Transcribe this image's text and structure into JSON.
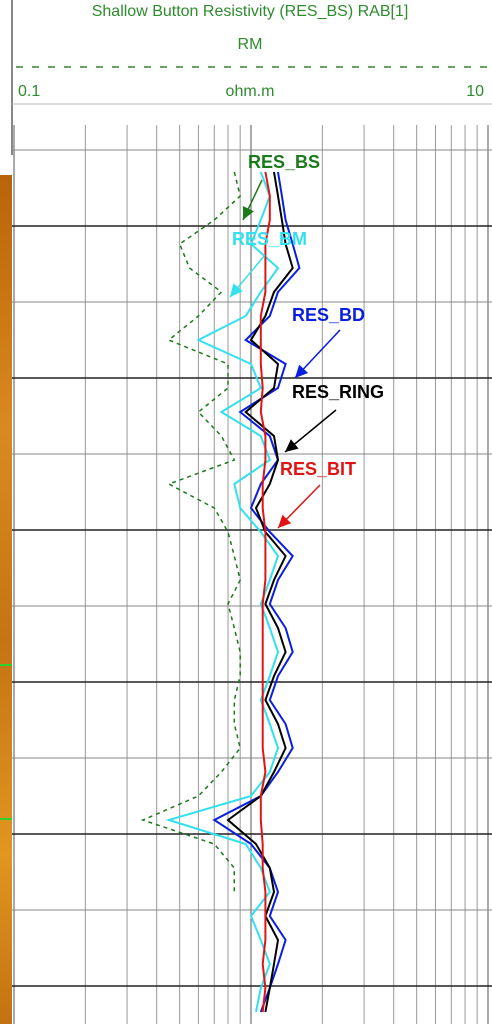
{
  "chart_data": {
    "type": "line",
    "title": "Shallow Button Resistivity (RES_BS) RAB[1]",
    "subtitle": "RM",
    "x_label": "ohm.m",
    "xlim": [
      0.1,
      10
    ],
    "xticks": [
      0.1,
      10
    ],
    "log_x": true,
    "grid": true,
    "title_color": "#2e8b2e",
    "series": [
      {
        "name": "RES_BS",
        "color": "#1a7a1a",
        "dashed": true,
        "values": [
          0.85,
          0.9,
          0.7,
          0.5,
          0.55,
          0.75,
          0.6,
          0.45,
          0.8,
          0.8,
          0.6,
          0.75,
          0.85,
          0.45,
          0.7,
          0.8,
          0.85,
          0.9,
          0.8,
          0.85,
          0.9,
          0.9,
          0.85,
          0.85,
          0.9,
          0.75,
          0.6,
          0.35,
          0.7,
          0.85,
          0.85,
          null,
          null,
          null,
          null,
          null
        ]
      },
      {
        "name": "RES_BM",
        "color": "#33e0ee",
        "dashed": false,
        "values": [
          1.1,
          1.2,
          1.1,
          1.0,
          1.3,
          1.1,
          0.95,
          0.6,
          1.0,
          1.1,
          0.75,
          1.1,
          1.2,
          0.85,
          0.9,
          1.1,
          1.3,
          1.2,
          1.1,
          1.2,
          1.3,
          1.2,
          1.1,
          1.2,
          1.3,
          1.2,
          1.0,
          0.45,
          0.95,
          1.1,
          1.2,
          1.0,
          1.1,
          1.2,
          1.1,
          1.05
        ]
      },
      {
        "name": "RES_BD",
        "color": "#0a1ee0",
        "dashed": false,
        "values": [
          1.3,
          1.35,
          1.4,
          1.5,
          1.6,
          1.3,
          1.2,
          0.95,
          1.4,
          1.3,
          0.9,
          1.2,
          1.3,
          1.1,
          1.0,
          1.2,
          1.5,
          1.3,
          1.2,
          1.4,
          1.5,
          1.3,
          1.2,
          1.4,
          1.5,
          1.3,
          1.1,
          0.7,
          1.0,
          1.2,
          1.3,
          1.2,
          1.4,
          1.3,
          1.2,
          1.1
        ]
      },
      {
        "name": "RES_RING",
        "color": "#000000",
        "dashed": false,
        "values": [
          1.25,
          1.3,
          1.35,
          1.4,
          1.5,
          1.25,
          1.15,
          1.0,
          1.3,
          1.25,
          0.95,
          1.25,
          1.3,
          1.2,
          1.05,
          1.15,
          1.4,
          1.25,
          1.15,
          1.3,
          1.4,
          1.25,
          1.15,
          1.3,
          1.4,
          1.25,
          1.1,
          0.8,
          1.05,
          1.2,
          1.25,
          1.15,
          1.3,
          1.25,
          1.2,
          1.15
        ]
      },
      {
        "name": "RES_BIT",
        "color": "#e01414",
        "dashed": false,
        "values": [
          1.15,
          1.2,
          1.2,
          1.15,
          1.15,
          1.15,
          1.1,
          1.1,
          1.1,
          1.12,
          1.1,
          1.15,
          1.15,
          1.12,
          1.12,
          1.15,
          1.15,
          1.15,
          1.12,
          1.12,
          1.12,
          1.12,
          1.12,
          1.12,
          1.12,
          1.15,
          1.1,
          1.1,
          1.12,
          1.12,
          1.15,
          1.15,
          1.15,
          1.12,
          1.15,
          1.12
        ]
      }
    ]
  }
}
